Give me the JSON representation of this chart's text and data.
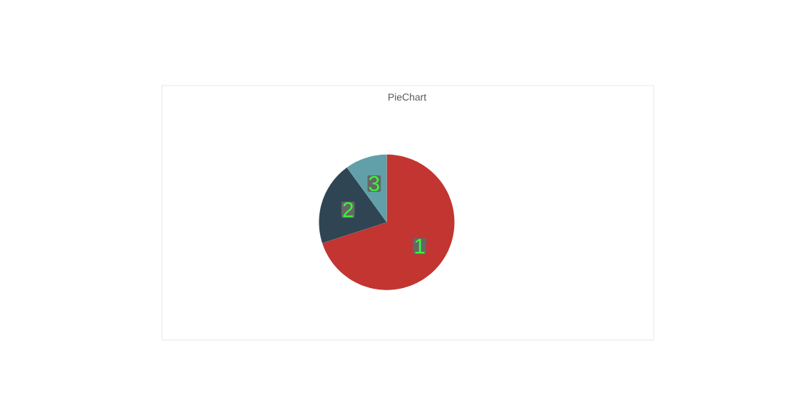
{
  "chart_data": {
    "type": "pie",
    "title": "PieChart",
    "categories": [
      "1",
      "2",
      "3"
    ],
    "values": [
      70,
      20,
      10
    ],
    "colors": [
      "#c23531",
      "#2f4554",
      "#61a0a8"
    ]
  }
}
